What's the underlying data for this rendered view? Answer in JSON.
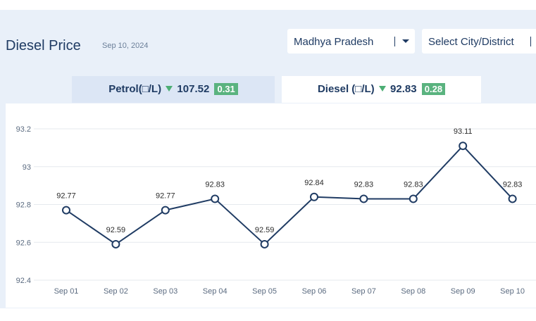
{
  "header": {
    "title": "Diesel Price",
    "date": "Sep 10, 2024"
  },
  "filters": {
    "state": "Madhya Pradesh",
    "city_placeholder": "Select City/District"
  },
  "tabs": [
    {
      "label": "Petrol(□/L)",
      "price": "107.52",
      "change": "0.31",
      "active": false
    },
    {
      "label": "Diesel (□/L)",
      "price": "92.83",
      "change": "0.28",
      "active": true
    }
  ],
  "colors": {
    "line": "#1f3b63",
    "grid": "#e6e9ee",
    "badge": "#5ab37f",
    "down_arrow": "#4cae74"
  },
  "icons": [
    "chevron-down-icon",
    "down-triangle-icon"
  ],
  "chart_data": {
    "type": "line",
    "categories": [
      "Sep 01",
      "Sep 02",
      "Sep 03",
      "Sep 04",
      "Sep 05",
      "Sep 06",
      "Sep 07",
      "Sep 08",
      "Sep 09",
      "Sep 10"
    ],
    "values": [
      92.77,
      92.59,
      92.77,
      92.83,
      92.59,
      92.84,
      92.83,
      92.83,
      93.11,
      92.83
    ],
    "data_labels": [
      "92.77",
      "92.59",
      "92.77",
      "92.83",
      "92.59",
      "92.84",
      "92.83",
      "92.83",
      "93.11",
      "92.83"
    ],
    "y_ticks": [
      "93.2",
      "93",
      "92.8",
      "92.6",
      "92.4"
    ],
    "y_tick_values": [
      93.2,
      93.0,
      92.8,
      92.6,
      92.4
    ],
    "ylim": [
      92.4,
      93.2
    ],
    "grid": true,
    "title": "",
    "xlabel": "",
    "ylabel": ""
  }
}
